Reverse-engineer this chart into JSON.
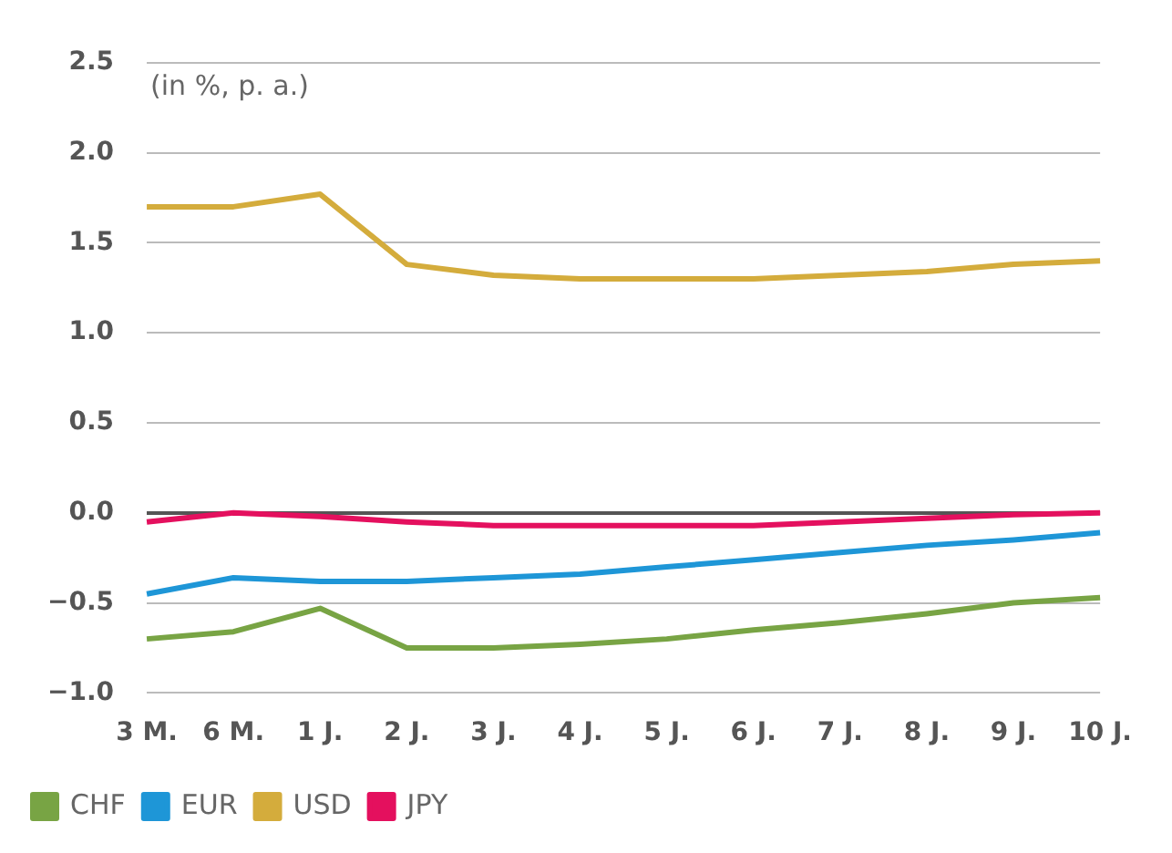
{
  "chart_data": {
    "type": "line",
    "subtitle": "(in %, p. a.)",
    "categories": [
      "3 M.",
      "6 M.",
      "1 J.",
      "2 J.",
      "3 J.",
      "4 J.",
      "5 J.",
      "6 J.",
      "7 J.",
      "8 J.",
      "9 J.",
      "10 J."
    ],
    "series": [
      {
        "name": "CHF",
        "color": "#78a444",
        "values": [
          -0.7,
          -0.66,
          -0.53,
          -0.75,
          -0.75,
          -0.73,
          -0.7,
          -0.65,
          -0.61,
          -0.56,
          -0.5,
          -0.47
        ]
      },
      {
        "name": "EUR",
        "color": "#1e96d7",
        "values": [
          -0.45,
          -0.36,
          -0.38,
          -0.38,
          -0.36,
          -0.34,
          -0.3,
          -0.26,
          -0.22,
          -0.18,
          -0.15,
          -0.11
        ]
      },
      {
        "name": "USD",
        "color": "#d4ac3c",
        "values": [
          1.7,
          1.7,
          1.77,
          1.38,
          1.32,
          1.3,
          1.3,
          1.3,
          1.32,
          1.34,
          1.38,
          1.4
        ]
      },
      {
        "name": "JPY",
        "color": "#e4105e",
        "values": [
          -0.05,
          0.0,
          -0.02,
          -0.05,
          -0.07,
          -0.07,
          -0.07,
          -0.07,
          -0.05,
          -0.03,
          -0.01,
          0.0
        ]
      }
    ],
    "ylim": [
      -1.0,
      2.5
    ],
    "yticks": [
      {
        "value": -1,
        "label": "−1.0"
      },
      {
        "value": -0.5,
        "label": "−0.5"
      },
      {
        "value": 0,
        "label": "0.0"
      },
      {
        "value": 0.5,
        "label": "0.5"
      },
      {
        "value": 1,
        "label": "1.0"
      },
      {
        "value": 1.5,
        "label": "1.5"
      },
      {
        "value": 2,
        "label": "2.0"
      },
      {
        "value": 2.5,
        "label": "2.5"
      }
    ],
    "grid": "y",
    "legend": "bottom left",
    "marker": "none",
    "line_style": "solid"
  }
}
